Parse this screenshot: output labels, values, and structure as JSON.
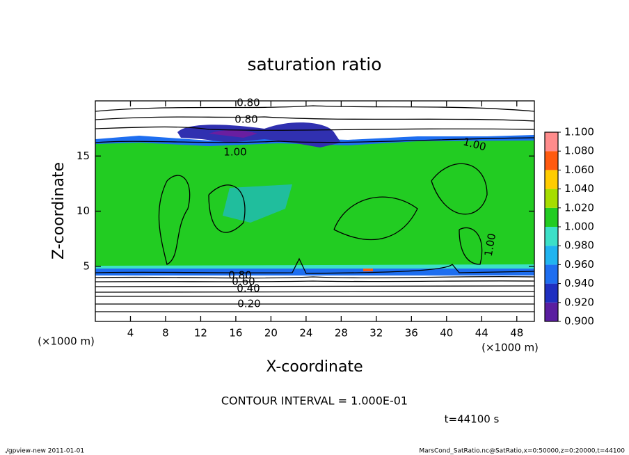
{
  "chart_data": {
    "type": "contour",
    "title": "saturation ratio",
    "x_label": "X-coordinate",
    "y_label": "Z-coordinate",
    "x_unit": "(×1000 m)",
    "y_unit": "(×1000 m)",
    "xlim": [
      0,
      50
    ],
    "ylim": [
      0,
      20
    ],
    "xticks": [
      4,
      8,
      12,
      16,
      20,
      24,
      28,
      32,
      36,
      40,
      44,
      48
    ],
    "yticks": [
      5,
      10,
      15
    ],
    "colorbar": {
      "lim": [
        0.9,
        1.1
      ],
      "ticks": [
        {
          "value": 0.9,
          "label": "0.900"
        },
        {
          "value": 0.92,
          "label": "0.920"
        },
        {
          "value": 0.94,
          "label": "0.940"
        },
        {
          "value": 0.96,
          "label": "0.960"
        },
        {
          "value": 0.98,
          "label": "0.980"
        },
        {
          "value": 1.0,
          "label": "1.000"
        },
        {
          "value": 1.02,
          "label": "1.020"
        },
        {
          "value": 1.04,
          "label": "1.040"
        },
        {
          "value": 1.06,
          "label": "1.060"
        },
        {
          "value": 1.08,
          "label": "1.080"
        },
        {
          "value": 1.1,
          "label": "1.100"
        }
      ],
      "colors": [
        "#5a1ea0",
        "#1f2fc0",
        "#1e6ef0",
        "#20b4f0",
        "#3ce0c8",
        "#22cc22",
        "#a6dd00",
        "#ffcc00",
        "#ff5a10",
        "#ff8c8c"
      ]
    },
    "contour_labels": [
      "0.80",
      "0.80",
      "1.00",
      "1.00",
      "1.00",
      "0.80",
      "0.60",
      "0.40",
      "0.20"
    ],
    "annotation": "CONTOUR INTERVAL = 1.000E-01",
    "time_label": "t=44100 s",
    "footer_left": "./gpview-new  2011-01-01",
    "footer_right": "MarsCond_SatRatio.nc@SatRatio,x=0:50000,z=0:20000,t=44100"
  }
}
